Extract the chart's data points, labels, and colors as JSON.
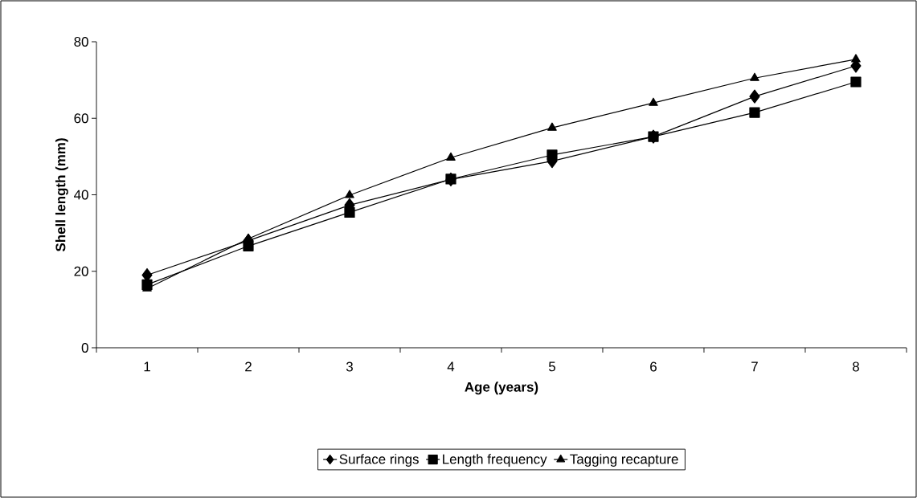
{
  "chart_data": {
    "type": "line",
    "xlabel": "Age (years)",
    "ylabel": "Shell length (mm)",
    "categories": [
      "1",
      "2",
      "3",
      "4",
      "5",
      "6",
      "7",
      "8"
    ],
    "series": [
      {
        "name": "Surface rings",
        "color": "#000000",
        "marker": "diamond",
        "values": [
          19,
          28,
          37.3,
          44,
          48.8,
          55.2,
          65.7,
          73.7
        ]
      },
      {
        "name": "Length frequency",
        "color": "#000000",
        "marker": "square",
        "values": [
          16.5,
          26.6,
          35.4,
          44.1,
          50.4,
          55.2,
          61.5,
          69.5
        ]
      },
      {
        "name": "Tagging recapture",
        "color": "#000000",
        "marker": "triangle",
        "values": [
          15.5,
          28.5,
          39.9,
          49.7,
          57.5,
          64,
          70.5,
          75.4
        ]
      }
    ],
    "ylim": [
      0,
      80
    ],
    "yticks": [
      0,
      20,
      40,
      60,
      80
    ],
    "grid": false,
    "legend": "bottom"
  }
}
